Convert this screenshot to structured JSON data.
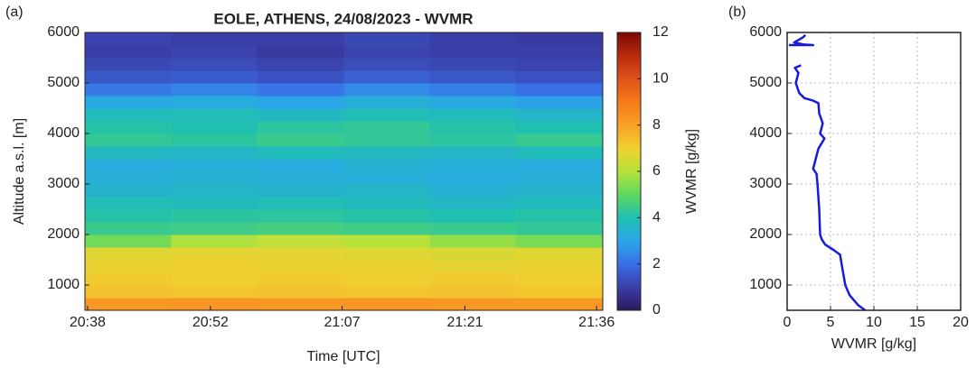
{
  "chart_data": [
    {
      "type": "heatmap",
      "panel_label": "(a)",
      "title": "EOLE, ATHENS, 24/08/2023 - WVMR",
      "x_label": "Time [UTC]",
      "y_label": "Altitude a.s.l. [m]",
      "xlim": [
        1237.7,
        1296.7
      ],
      "xticks": [
        {
          "value": 1238,
          "label": "20:38"
        },
        {
          "value": 1252,
          "label": "20:52"
        },
        {
          "value": 1267,
          "label": "21:07"
        },
        {
          "value": 1281,
          "label": "21:21"
        },
        {
          "value": 1296,
          "label": "21:36"
        }
      ],
      "ylim": [
        500,
        6000
      ],
      "yticks": [
        1000,
        2000,
        3000,
        4000,
        5000,
        6000
      ],
      "x_edges": [
        1237.7,
        1247.5,
        1257.3,
        1267.2,
        1277,
        1286.8,
        1296.7
      ],
      "y_edges": [
        500,
        750,
        1000,
        1250,
        1500,
        1750,
        2000,
        2250,
        2500,
        2750,
        3000,
        3250,
        3500,
        3750,
        4000,
        4250,
        4500,
        4750,
        5000,
        5250,
        5500,
        5750,
        6000
      ],
      "z": [
        [
          8.2,
          8.3,
          8.2,
          8.3,
          8.2,
          8.2
        ],
        [
          7.3,
          7.2,
          7.3,
          7.2,
          7.3,
          7.2
        ],
        [
          7.1,
          7.0,
          7.1,
          7.0,
          7.1,
          7.0
        ],
        [
          6.9,
          7.0,
          6.9,
          6.9,
          6.8,
          6.9
        ],
        [
          6.7,
          6.8,
          6.8,
          6.7,
          6.6,
          6.7
        ],
        [
          5.2,
          5.9,
          6.2,
          6.0,
          5.6,
          5.3
        ],
        [
          4.4,
          4.5,
          4.6,
          4.5,
          4.4,
          4.3
        ],
        [
          4.1,
          4.2,
          4.2,
          4.1,
          4.0,
          4.1
        ],
        [
          3.9,
          3.8,
          3.9,
          3.8,
          3.7,
          3.8
        ],
        [
          3.5,
          3.6,
          3.5,
          3.6,
          3.4,
          3.5
        ],
        [
          3.3,
          3.4,
          3.3,
          3.3,
          3.2,
          3.3
        ],
        [
          3.2,
          3.3,
          3.2,
          3.4,
          3.3,
          3.2
        ],
        [
          3.7,
          3.6,
          3.8,
          3.7,
          3.6,
          3.8
        ],
        [
          4.3,
          4.2,
          4.4,
          4.3,
          4.2,
          4.4
        ],
        [
          4.1,
          4.0,
          4.2,
          4.3,
          4.1,
          4.0
        ],
        [
          3.8,
          3.9,
          3.7,
          3.9,
          3.8,
          3.6
        ],
        [
          3.1,
          3.2,
          3.0,
          3.3,
          3.1,
          2.9
        ],
        [
          2.2,
          2.4,
          2.1,
          2.5,
          2.3,
          2.0
        ],
        [
          1.5,
          1.6,
          1.4,
          1.7,
          1.5,
          1.4
        ],
        [
          1.2,
          1.3,
          1.1,
          1.3,
          1.2,
          1.1
        ],
        [
          1.0,
          1.1,
          0.9,
          1.1,
          1.0,
          1.0
        ],
        [
          1.1,
          1.0,
          1.0,
          1.2,
          1.0,
          0.9
        ]
      ],
      "clim": [
        0,
        12
      ],
      "cticks": [
        0,
        2,
        4,
        6,
        8,
        10,
        12
      ],
      "colorbar_label": "WVMR [g/kg]",
      "colormap": [
        "#2c1a5c",
        "#3a3ea8",
        "#3a6fe6",
        "#2aa6e8",
        "#20c0b0",
        "#5fd860",
        "#b7e23a",
        "#f0d030",
        "#f9a128",
        "#f57a1a",
        "#e0521a",
        "#b82a0d",
        "#7a0a04"
      ]
    },
    {
      "type": "line",
      "panel_label": "(b)",
      "x_label": "WVMR [g/kg]",
      "xlim": [
        0,
        20
      ],
      "xticks": [
        0,
        5,
        10,
        15,
        20
      ],
      "ylim": [
        500,
        6000
      ],
      "yticks": [
        1000,
        2000,
        3000,
        4000,
        5000,
        6000
      ],
      "grid": true,
      "series": [
        {
          "color": "#1a1adf",
          "x": [
            9,
            8.2,
            7.2,
            6.7,
            6.4,
            6.2,
            6.1,
            5.3,
            4.4,
            4.0,
            3.8,
            3.7,
            3.5,
            3.4,
            3.0,
            3.3,
            3.6,
            4.3,
            3.8,
            4.1,
            3.7,
            3.6,
            3.0,
            2.0,
            1.4,
            1.0,
            1.3,
            0.9,
            1.6,
            null,
            0.2,
            3.0,
            2.0,
            0.8,
            1.8,
            2.1
          ],
          "values": [
            500,
            600,
            800,
            1000,
            1300,
            1500,
            1600,
            1700,
            1800,
            1900,
            2000,
            2500,
            3000,
            3200,
            3300,
            3500,
            3700,
            3900,
            4000,
            4200,
            4400,
            4600,
            4650,
            4700,
            4800,
            5000,
            5200,
            5300,
            5350,
            null,
            5750,
            5750,
            5760,
            5800,
            5900,
            5950
          ]
        }
      ]
    }
  ]
}
